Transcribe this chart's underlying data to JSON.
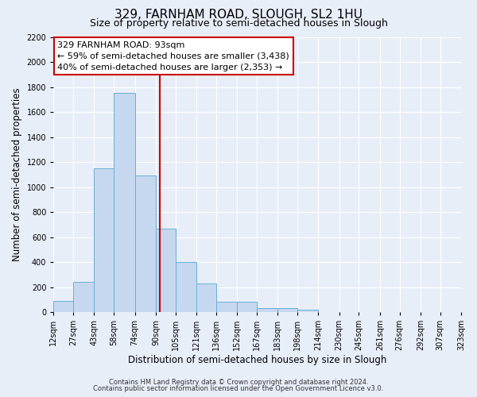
{
  "title": "329, FARNHAM ROAD, SLOUGH, SL2 1HU",
  "subtitle": "Size of property relative to semi-detached houses in Slough",
  "xlabel": "Distribution of semi-detached houses by size in Slough",
  "ylabel": "Number of semi-detached properties",
  "bin_labels": [
    "12sqm",
    "27sqm",
    "43sqm",
    "58sqm",
    "74sqm",
    "90sqm",
    "105sqm",
    "121sqm",
    "136sqm",
    "152sqm",
    "167sqm",
    "183sqm",
    "198sqm",
    "214sqm",
    "230sqm",
    "245sqm",
    "261sqm",
    "276sqm",
    "292sqm",
    "307sqm",
    "323sqm"
  ],
  "bin_left_edges": [
    12,
    27,
    43,
    58,
    74,
    90,
    105,
    121,
    136,
    152,
    167,
    183,
    198,
    214,
    230,
    245,
    261,
    276,
    292,
    307,
    323
  ],
  "bar_heights": [
    90,
    240,
    1150,
    1750,
    1090,
    670,
    400,
    230,
    85,
    80,
    35,
    30,
    20,
    0,
    0,
    0,
    0,
    0,
    0,
    0,
    0
  ],
  "bar_color": "#c5d8f0",
  "bar_edge_color": "#6aaed6",
  "property_size": 93,
  "vline_color": "#cc0000",
  "annotation_line1": "329 FARNHAM ROAD: 93sqm",
  "annotation_line2": "← 59% of semi-detached houses are smaller (3,438)",
  "annotation_line3": "40% of semi-detached houses are larger (2,353) →",
  "annotation_box_color": "white",
  "annotation_box_edge": "#cc0000",
  "ylim": [
    0,
    2200
  ],
  "yticks": [
    0,
    200,
    400,
    600,
    800,
    1000,
    1200,
    1400,
    1600,
    1800,
    2000,
    2200
  ],
  "xlim_left": 12,
  "xlim_right": 323,
  "footer1": "Contains HM Land Registry data © Crown copyright and database right 2024.",
  "footer2": "Contains public sector information licensed under the Open Government Licence v3.0.",
  "bg_color": "#e8eef8",
  "grid_color": "#ffffff",
  "title_fontsize": 11,
  "subtitle_fontsize": 9,
  "axis_label_fontsize": 8.5,
  "tick_fontsize": 7,
  "annotation_fontsize": 8,
  "footer_fontsize": 6
}
